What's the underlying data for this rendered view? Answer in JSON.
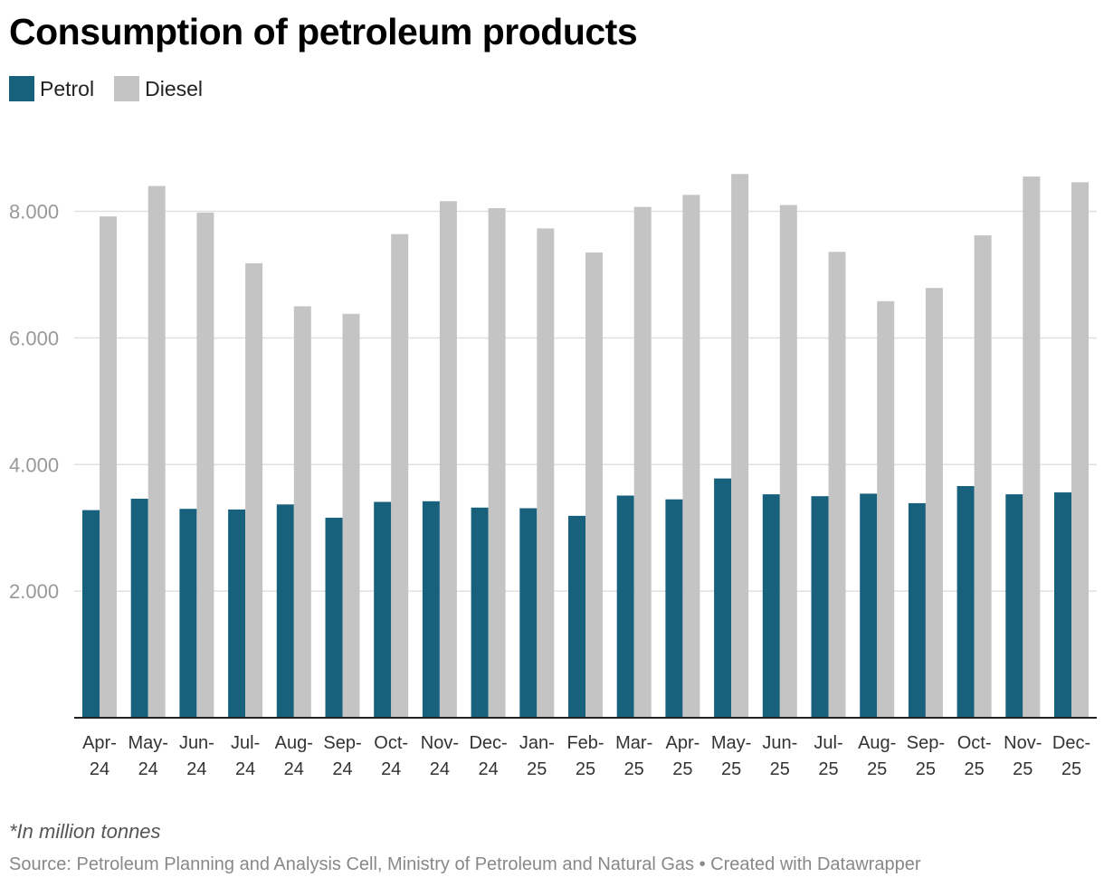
{
  "title": "Consumption of petroleum products",
  "legend": [
    {
      "name": "Petrol",
      "color": "#18617d"
    },
    {
      "name": "Diesel",
      "color": "#c4c4c4"
    }
  ],
  "footnote": "*In million tonnes",
  "source": "Source: Petroleum Planning and Analysis Cell, Ministry of Petroleum and Natural Gas • Created with Datawrapper",
  "chart_data": {
    "type": "bar",
    "categories": [
      "Apr-24",
      "May-24",
      "Jun-24",
      "Jul-24",
      "Aug-24",
      "Sep-24",
      "Oct-24",
      "Nov-24",
      "Dec-24",
      "Jan-25",
      "Feb-25",
      "Mar-25",
      "Apr-25",
      "May-25",
      "Jun-25",
      "Jul-25",
      "Aug-25",
      "Sep-25",
      "Oct-25",
      "Nov-25",
      "Dec-25"
    ],
    "category_lines": [
      [
        "Apr-",
        "24"
      ],
      [
        "May-",
        "24"
      ],
      [
        "Jun-",
        "24"
      ],
      [
        "Jul-",
        "24"
      ],
      [
        "Aug-",
        "24"
      ],
      [
        "Sep-",
        "24"
      ],
      [
        "Oct-",
        "24"
      ],
      [
        "Nov-",
        "24"
      ],
      [
        "Dec-",
        "24"
      ],
      [
        "Jan-",
        "25"
      ],
      [
        "Feb-",
        "25"
      ],
      [
        "Mar-",
        "25"
      ],
      [
        "Apr-",
        "25"
      ],
      [
        "May-",
        "25"
      ],
      [
        "Jun-",
        "25"
      ],
      [
        "Jul-",
        "25"
      ],
      [
        "Aug-",
        "25"
      ],
      [
        "Sep-",
        "25"
      ],
      [
        "Oct-",
        "25"
      ],
      [
        "Nov-",
        "25"
      ],
      [
        "Dec-",
        "25"
      ]
    ],
    "series": [
      {
        "name": "Petrol",
        "color": "#18617d",
        "values": [
          3280,
          3460,
          3300,
          3290,
          3370,
          3160,
          3410,
          3420,
          3320,
          3310,
          3190,
          3510,
          3450,
          3780,
          3530,
          3500,
          3540,
          3390,
          3660,
          3530,
          3560
        ]
      },
      {
        "name": "Diesel",
        "color": "#c4c4c4",
        "values": [
          7920,
          8400,
          7980,
          7180,
          6500,
          6380,
          7640,
          8160,
          8050,
          7730,
          7350,
          8070,
          8260,
          8590,
          8100,
          7360,
          6580,
          6790,
          7620,
          8550,
          8460
        ]
      }
    ],
    "yticks": [
      2000,
      4000,
      6000,
      8000
    ],
    "ytick_labels": [
      "2.000",
      "4.000",
      "6.000",
      "8.000"
    ],
    "ylim": [
      0,
      9000
    ],
    "grid": true,
    "legend_position": "top-left"
  }
}
